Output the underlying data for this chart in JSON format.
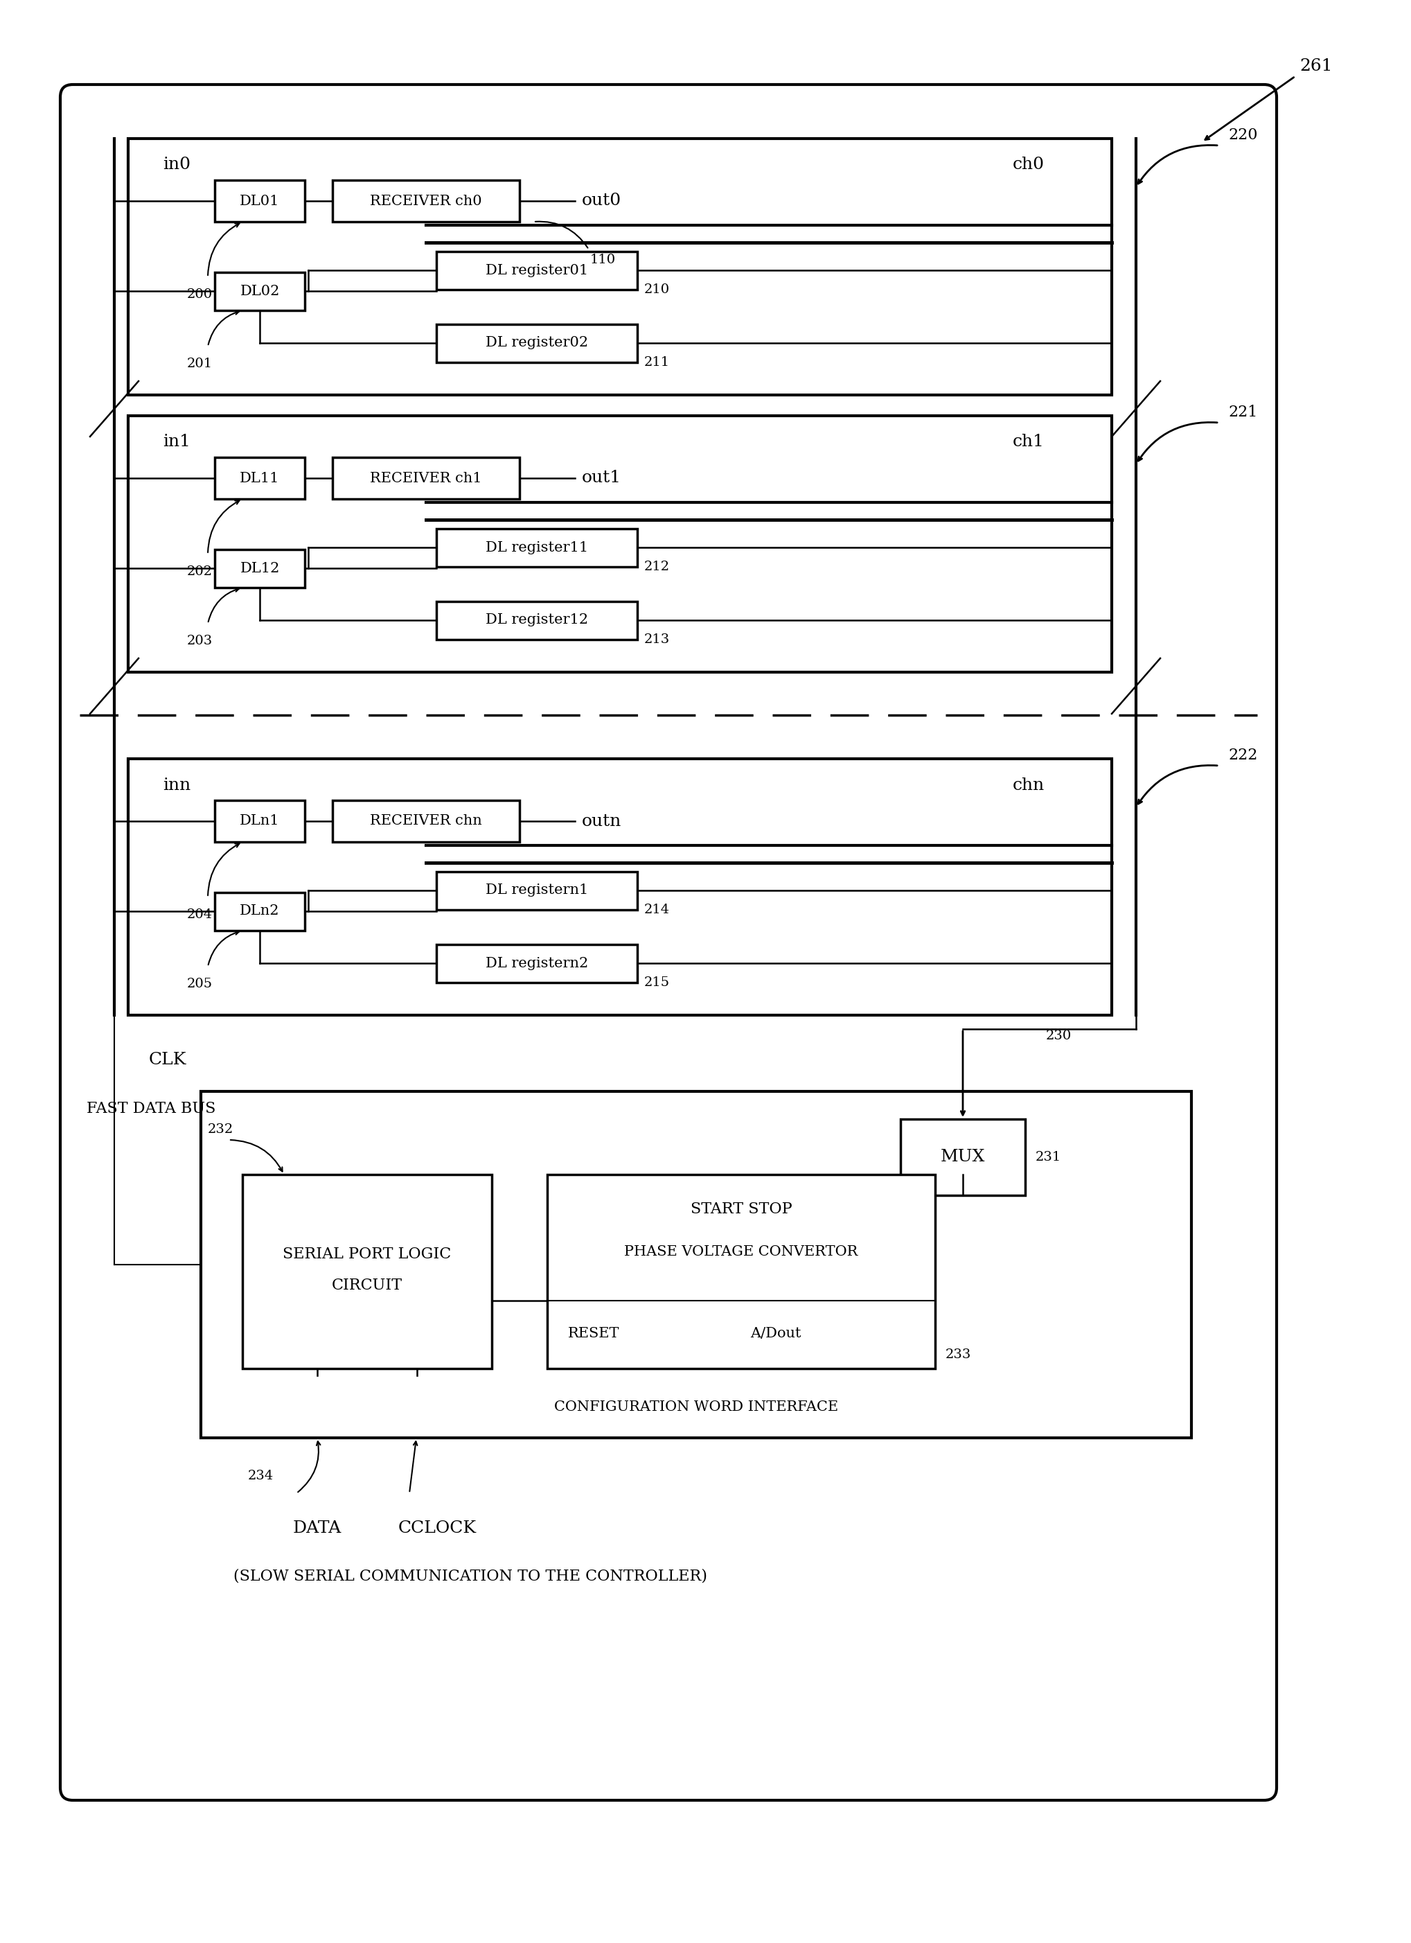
{
  "fig_width": 20.37,
  "fig_height": 28.04,
  "bg_color": "#ffffff",
  "channels": [
    {
      "label": "ch0",
      "in_label": "in0",
      "out_label": "out0",
      "ch_ref": "220",
      "dl1_label": "DL01",
      "recv_label": "RECEIVER ch0",
      "dl2_label": "DL02",
      "reg1_label": "DL register01",
      "reg1_num": "210",
      "reg2_label": "DL register02",
      "reg2_num": "211",
      "arr1_num": "200",
      "arr2_num": "201",
      "chan_num": "110"
    },
    {
      "label": "ch1",
      "in_label": "in1",
      "out_label": "out1",
      "ch_ref": "221",
      "dl1_label": "DL11",
      "recv_label": "RECEIVER ch1",
      "dl2_label": "DL12",
      "reg1_label": "DL register11",
      "reg1_num": "212",
      "reg2_label": "DL register12",
      "reg2_num": "213",
      "arr1_num": "202",
      "arr2_num": "203",
      "chan_num": ""
    },
    {
      "label": "chn",
      "in_label": "inn",
      "out_label": "outn",
      "ch_ref": "222",
      "dl1_label": "DLn1",
      "recv_label": "RECEIVER chn",
      "dl2_label": "DLn2",
      "reg1_label": "DL registern1",
      "reg1_num": "214",
      "reg2_label": "DL registern2",
      "reg2_num": "215",
      "arr1_num": "204",
      "arr2_num": "205",
      "chan_num": ""
    }
  ]
}
